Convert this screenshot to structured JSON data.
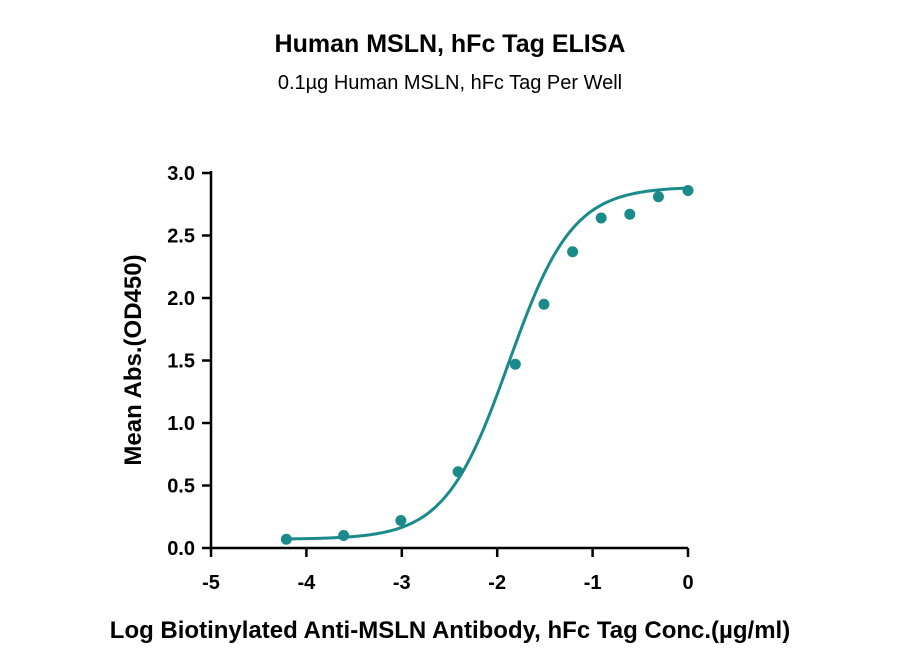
{
  "chart_data": {
    "type": "scatter",
    "title": "Human MSLN, hFc Tag ELISA",
    "subtitle": "0.1µg Human MSLN, hFc Tag Per Well",
    "xlabel": "Log Biotinylated Anti-MSLN Antibody, hFc Tag Conc.(µg/ml)",
    "ylabel": "Mean Abs.(OD450)",
    "xlim": [
      -5,
      0
    ],
    "ylim": [
      0,
      3
    ],
    "xticks": [
      "-5",
      "-4",
      "-3",
      "-2",
      "-1",
      "0"
    ],
    "yticks": [
      "0.0",
      "0.5",
      "1.0",
      "1.5",
      "2.0",
      "2.5",
      "3.0"
    ],
    "grid": false,
    "legend": "none",
    "color": "#1b8a8a",
    "series": [
      {
        "x": [
          -4.21,
          -3.61,
          -3.01,
          -2.41,
          -1.81,
          -1.51,
          -1.21,
          -0.91,
          -0.61,
          -0.31,
          0.0
        ],
        "y": [
          0.07,
          0.1,
          0.22,
          0.61,
          1.47,
          1.95,
          2.37,
          2.64,
          2.67,
          2.81,
          2.86
        ]
      }
    ],
    "fit_curve": {
      "bottom": 0.07,
      "top": 2.89,
      "logEC50": -1.88,
      "hill_slope": 1.3
    }
  }
}
